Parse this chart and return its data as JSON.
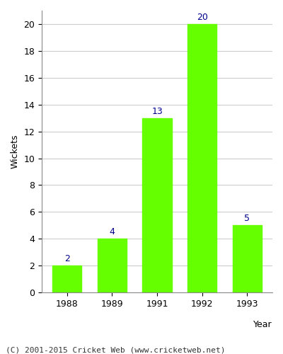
{
  "categories": [
    "1988",
    "1989",
    "1991",
    "1992",
    "1993"
  ],
  "values": [
    2,
    4,
    13,
    20,
    5
  ],
  "bar_color": "#66ff00",
  "bar_edgecolor": "#66ff00",
  "xlabel": "Year",
  "ylabel": "Wickets",
  "ylim": [
    0,
    21
  ],
  "yticks": [
    0,
    2,
    4,
    6,
    8,
    10,
    12,
    14,
    16,
    18,
    20
  ],
  "label_color": "#00008b",
  "label_fontsize": 9,
  "axis_label_fontsize": 9,
  "tick_fontsize": 9,
  "footer_text": "(C) 2001-2015 Cricket Web (www.cricketweb.net)",
  "footer_fontsize": 8,
  "background_color": "#ffffff",
  "plot_background_color": "#ffffff",
  "grid_color": "#cccccc"
}
